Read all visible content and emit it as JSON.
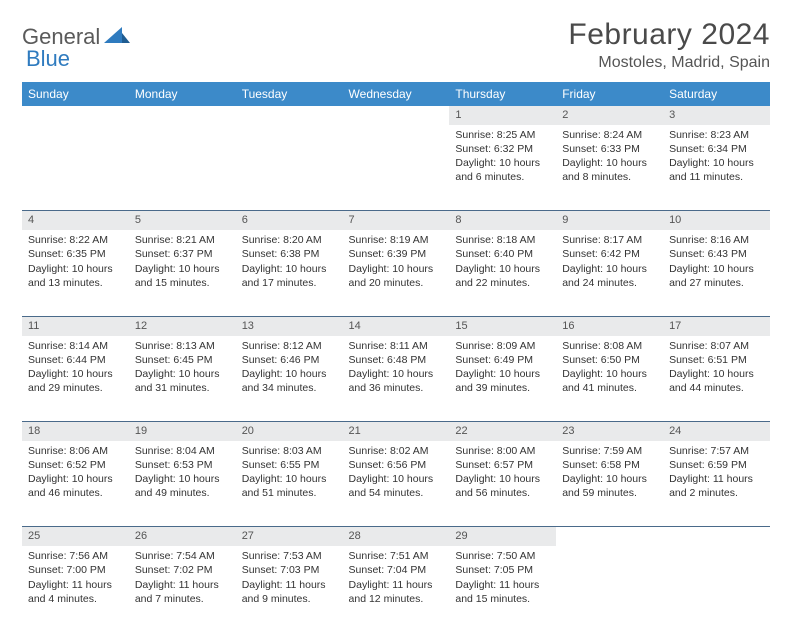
{
  "logo": {
    "word1": "General",
    "word2": "Blue"
  },
  "title": "February 2024",
  "location": "Mostoles, Madrid, Spain",
  "colors": {
    "header_bg": "#3c8ac9",
    "header_text": "#ffffff",
    "daynum_bg": "#e9eaeb",
    "border": "#4a6a8a",
    "logo_gray": "#5a5a5a",
    "logo_blue": "#2f7bbf"
  },
  "weekdays": [
    "Sunday",
    "Monday",
    "Tuesday",
    "Wednesday",
    "Thursday",
    "Friday",
    "Saturday"
  ],
  "weeks": [
    [
      null,
      null,
      null,
      null,
      {
        "n": "1",
        "sr": "8:25 AM",
        "ss": "6:32 PM",
        "dl": "10 hours and 6 minutes."
      },
      {
        "n": "2",
        "sr": "8:24 AM",
        "ss": "6:33 PM",
        "dl": "10 hours and 8 minutes."
      },
      {
        "n": "3",
        "sr": "8:23 AM",
        "ss": "6:34 PM",
        "dl": "10 hours and 11 minutes."
      }
    ],
    [
      {
        "n": "4",
        "sr": "8:22 AM",
        "ss": "6:35 PM",
        "dl": "10 hours and 13 minutes."
      },
      {
        "n": "5",
        "sr": "8:21 AM",
        "ss": "6:37 PM",
        "dl": "10 hours and 15 minutes."
      },
      {
        "n": "6",
        "sr": "8:20 AM",
        "ss": "6:38 PM",
        "dl": "10 hours and 17 minutes."
      },
      {
        "n": "7",
        "sr": "8:19 AM",
        "ss": "6:39 PM",
        "dl": "10 hours and 20 minutes."
      },
      {
        "n": "8",
        "sr": "8:18 AM",
        "ss": "6:40 PM",
        "dl": "10 hours and 22 minutes."
      },
      {
        "n": "9",
        "sr": "8:17 AM",
        "ss": "6:42 PM",
        "dl": "10 hours and 24 minutes."
      },
      {
        "n": "10",
        "sr": "8:16 AM",
        "ss": "6:43 PM",
        "dl": "10 hours and 27 minutes."
      }
    ],
    [
      {
        "n": "11",
        "sr": "8:14 AM",
        "ss": "6:44 PM",
        "dl": "10 hours and 29 minutes."
      },
      {
        "n": "12",
        "sr": "8:13 AM",
        "ss": "6:45 PM",
        "dl": "10 hours and 31 minutes."
      },
      {
        "n": "13",
        "sr": "8:12 AM",
        "ss": "6:46 PM",
        "dl": "10 hours and 34 minutes."
      },
      {
        "n": "14",
        "sr": "8:11 AM",
        "ss": "6:48 PM",
        "dl": "10 hours and 36 minutes."
      },
      {
        "n": "15",
        "sr": "8:09 AM",
        "ss": "6:49 PM",
        "dl": "10 hours and 39 minutes."
      },
      {
        "n": "16",
        "sr": "8:08 AM",
        "ss": "6:50 PM",
        "dl": "10 hours and 41 minutes."
      },
      {
        "n": "17",
        "sr": "8:07 AM",
        "ss": "6:51 PM",
        "dl": "10 hours and 44 minutes."
      }
    ],
    [
      {
        "n": "18",
        "sr": "8:06 AM",
        "ss": "6:52 PM",
        "dl": "10 hours and 46 minutes."
      },
      {
        "n": "19",
        "sr": "8:04 AM",
        "ss": "6:53 PM",
        "dl": "10 hours and 49 minutes."
      },
      {
        "n": "20",
        "sr": "8:03 AM",
        "ss": "6:55 PM",
        "dl": "10 hours and 51 minutes."
      },
      {
        "n": "21",
        "sr": "8:02 AM",
        "ss": "6:56 PM",
        "dl": "10 hours and 54 minutes."
      },
      {
        "n": "22",
        "sr": "8:00 AM",
        "ss": "6:57 PM",
        "dl": "10 hours and 56 minutes."
      },
      {
        "n": "23",
        "sr": "7:59 AM",
        "ss": "6:58 PM",
        "dl": "10 hours and 59 minutes."
      },
      {
        "n": "24",
        "sr": "7:57 AM",
        "ss": "6:59 PM",
        "dl": "11 hours and 2 minutes."
      }
    ],
    [
      {
        "n": "25",
        "sr": "7:56 AM",
        "ss": "7:00 PM",
        "dl": "11 hours and 4 minutes."
      },
      {
        "n": "26",
        "sr": "7:54 AM",
        "ss": "7:02 PM",
        "dl": "11 hours and 7 minutes."
      },
      {
        "n": "27",
        "sr": "7:53 AM",
        "ss": "7:03 PM",
        "dl": "11 hours and 9 minutes."
      },
      {
        "n": "28",
        "sr": "7:51 AM",
        "ss": "7:04 PM",
        "dl": "11 hours and 12 minutes."
      },
      {
        "n": "29",
        "sr": "7:50 AM",
        "ss": "7:05 PM",
        "dl": "11 hours and 15 minutes."
      },
      null,
      null
    ]
  ],
  "labels": {
    "sunrise": "Sunrise:",
    "sunset": "Sunset:",
    "daylight": "Daylight:"
  }
}
